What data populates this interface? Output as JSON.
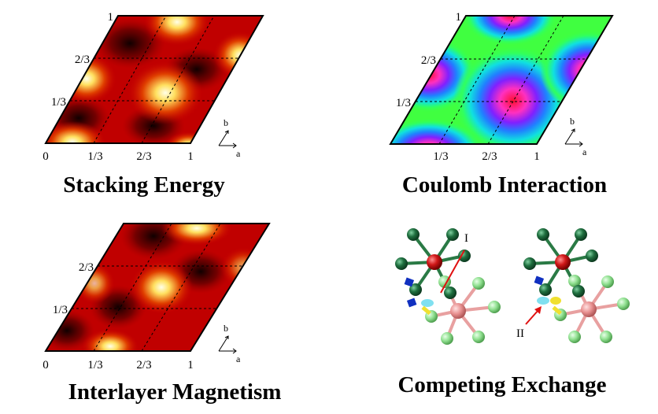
{
  "panels": {
    "stacking": {
      "caption": "Stacking Energy",
      "x_ticks": [
        "0",
        "1/3",
        "2/3",
        "1"
      ],
      "y_ticks": [
        "1/3",
        "2/3",
        "1"
      ],
      "axis_labels": {
        "a": "a",
        "b": "b"
      }
    },
    "coulomb": {
      "caption": "Coulomb Interaction",
      "x_ticks": [
        "1/3",
        "2/3",
        "1"
      ],
      "y_ticks": [
        "1/3",
        "2/3",
        "1"
      ],
      "axis_labels": {
        "a": "a",
        "b": "b"
      }
    },
    "magnetism": {
      "caption": "Interlayer Magnetism",
      "x_ticks": [
        "0",
        "1/3",
        "2/3",
        "1"
      ],
      "y_ticks": [
        "1/3",
        "2/3"
      ],
      "axis_labels": {
        "a": "a",
        "b": "b"
      }
    },
    "exchange": {
      "caption": "Competing Exchange",
      "labels": {
        "left": "I",
        "right": "II"
      }
    }
  },
  "colors": {
    "heat_dark": "#140000",
    "heat_red": "#c80000",
    "heat_hot": "#ffe060",
    "heat_white": "#ffffe0",
    "atom_dark_green": "#1f6f3f",
    "atom_red": "#d01818",
    "atom_pink": "#e89090",
    "atom_light_green": "#90e090",
    "atom_blue": "#1030c0",
    "atom_cyan": "#80e0f0",
    "atom_yellow": "#f0e030",
    "arrow_red": "#e01010"
  }
}
